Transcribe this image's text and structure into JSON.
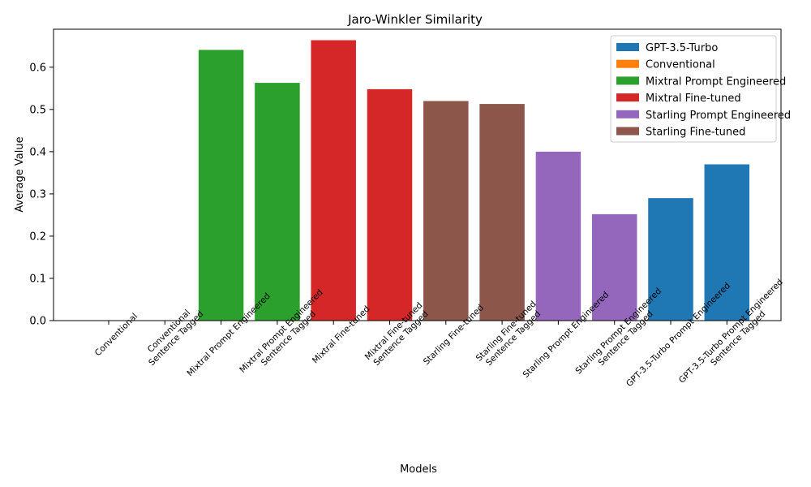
{
  "chart_data": {
    "type": "bar",
    "title": "Jaro-Winkler Similarity",
    "xlabel": "Models",
    "ylabel": "Average Value",
    "ylim": [
      0,
      0.69
    ],
    "yticks": [
      0.0,
      0.1,
      0.2,
      0.3,
      0.4,
      0.5,
      0.6
    ],
    "grid": false,
    "legend_position": "top-right",
    "categories": [
      [
        "Conventional"
      ],
      [
        "Conventional",
        "Sentence Tagged"
      ],
      [
        "Mixtral Prompt Engineered"
      ],
      [
        "Mixtral Prompt Engineered",
        "Sentence Tagged"
      ],
      [
        "Mixtral Fine-tuned"
      ],
      [
        "Mixtral Fine-tuned",
        "Sentence Tagged"
      ],
      [
        "Starling Fine-tuned"
      ],
      [
        "Starling Fine-tuned",
        "Sentence Tagged"
      ],
      [
        "Starling Prompt Engineered"
      ],
      [
        "Starling Prompt Engineered",
        "Sentence Tagged"
      ],
      [
        "GPT-3.5-Turbo Prompt Engineered"
      ],
      [
        "GPT-3.5-Turbo Prompt Engineered",
        "Sentence Tagged"
      ]
    ],
    "values": [
      0.0,
      0.0,
      0.641,
      0.563,
      0.664,
      0.548,
      0.52,
      0.513,
      0.4,
      0.252,
      0.29,
      0.37
    ],
    "bar_series": [
      1,
      1,
      2,
      2,
      3,
      3,
      5,
      5,
      4,
      4,
      0,
      0
    ],
    "series": [
      {
        "name": "GPT-3.5-Turbo",
        "color": "#1f77b4"
      },
      {
        "name": "Conventional",
        "color": "#ff7f0e"
      },
      {
        "name": "Mixtral Prompt Engineered",
        "color": "#2ca02c"
      },
      {
        "name": "Mixtral Fine-tuned",
        "color": "#d62728"
      },
      {
        "name": "Starling Prompt Engineered",
        "color": "#9467bd"
      },
      {
        "name": "Starling Fine-tuned",
        "color": "#8c564b"
      }
    ]
  }
}
